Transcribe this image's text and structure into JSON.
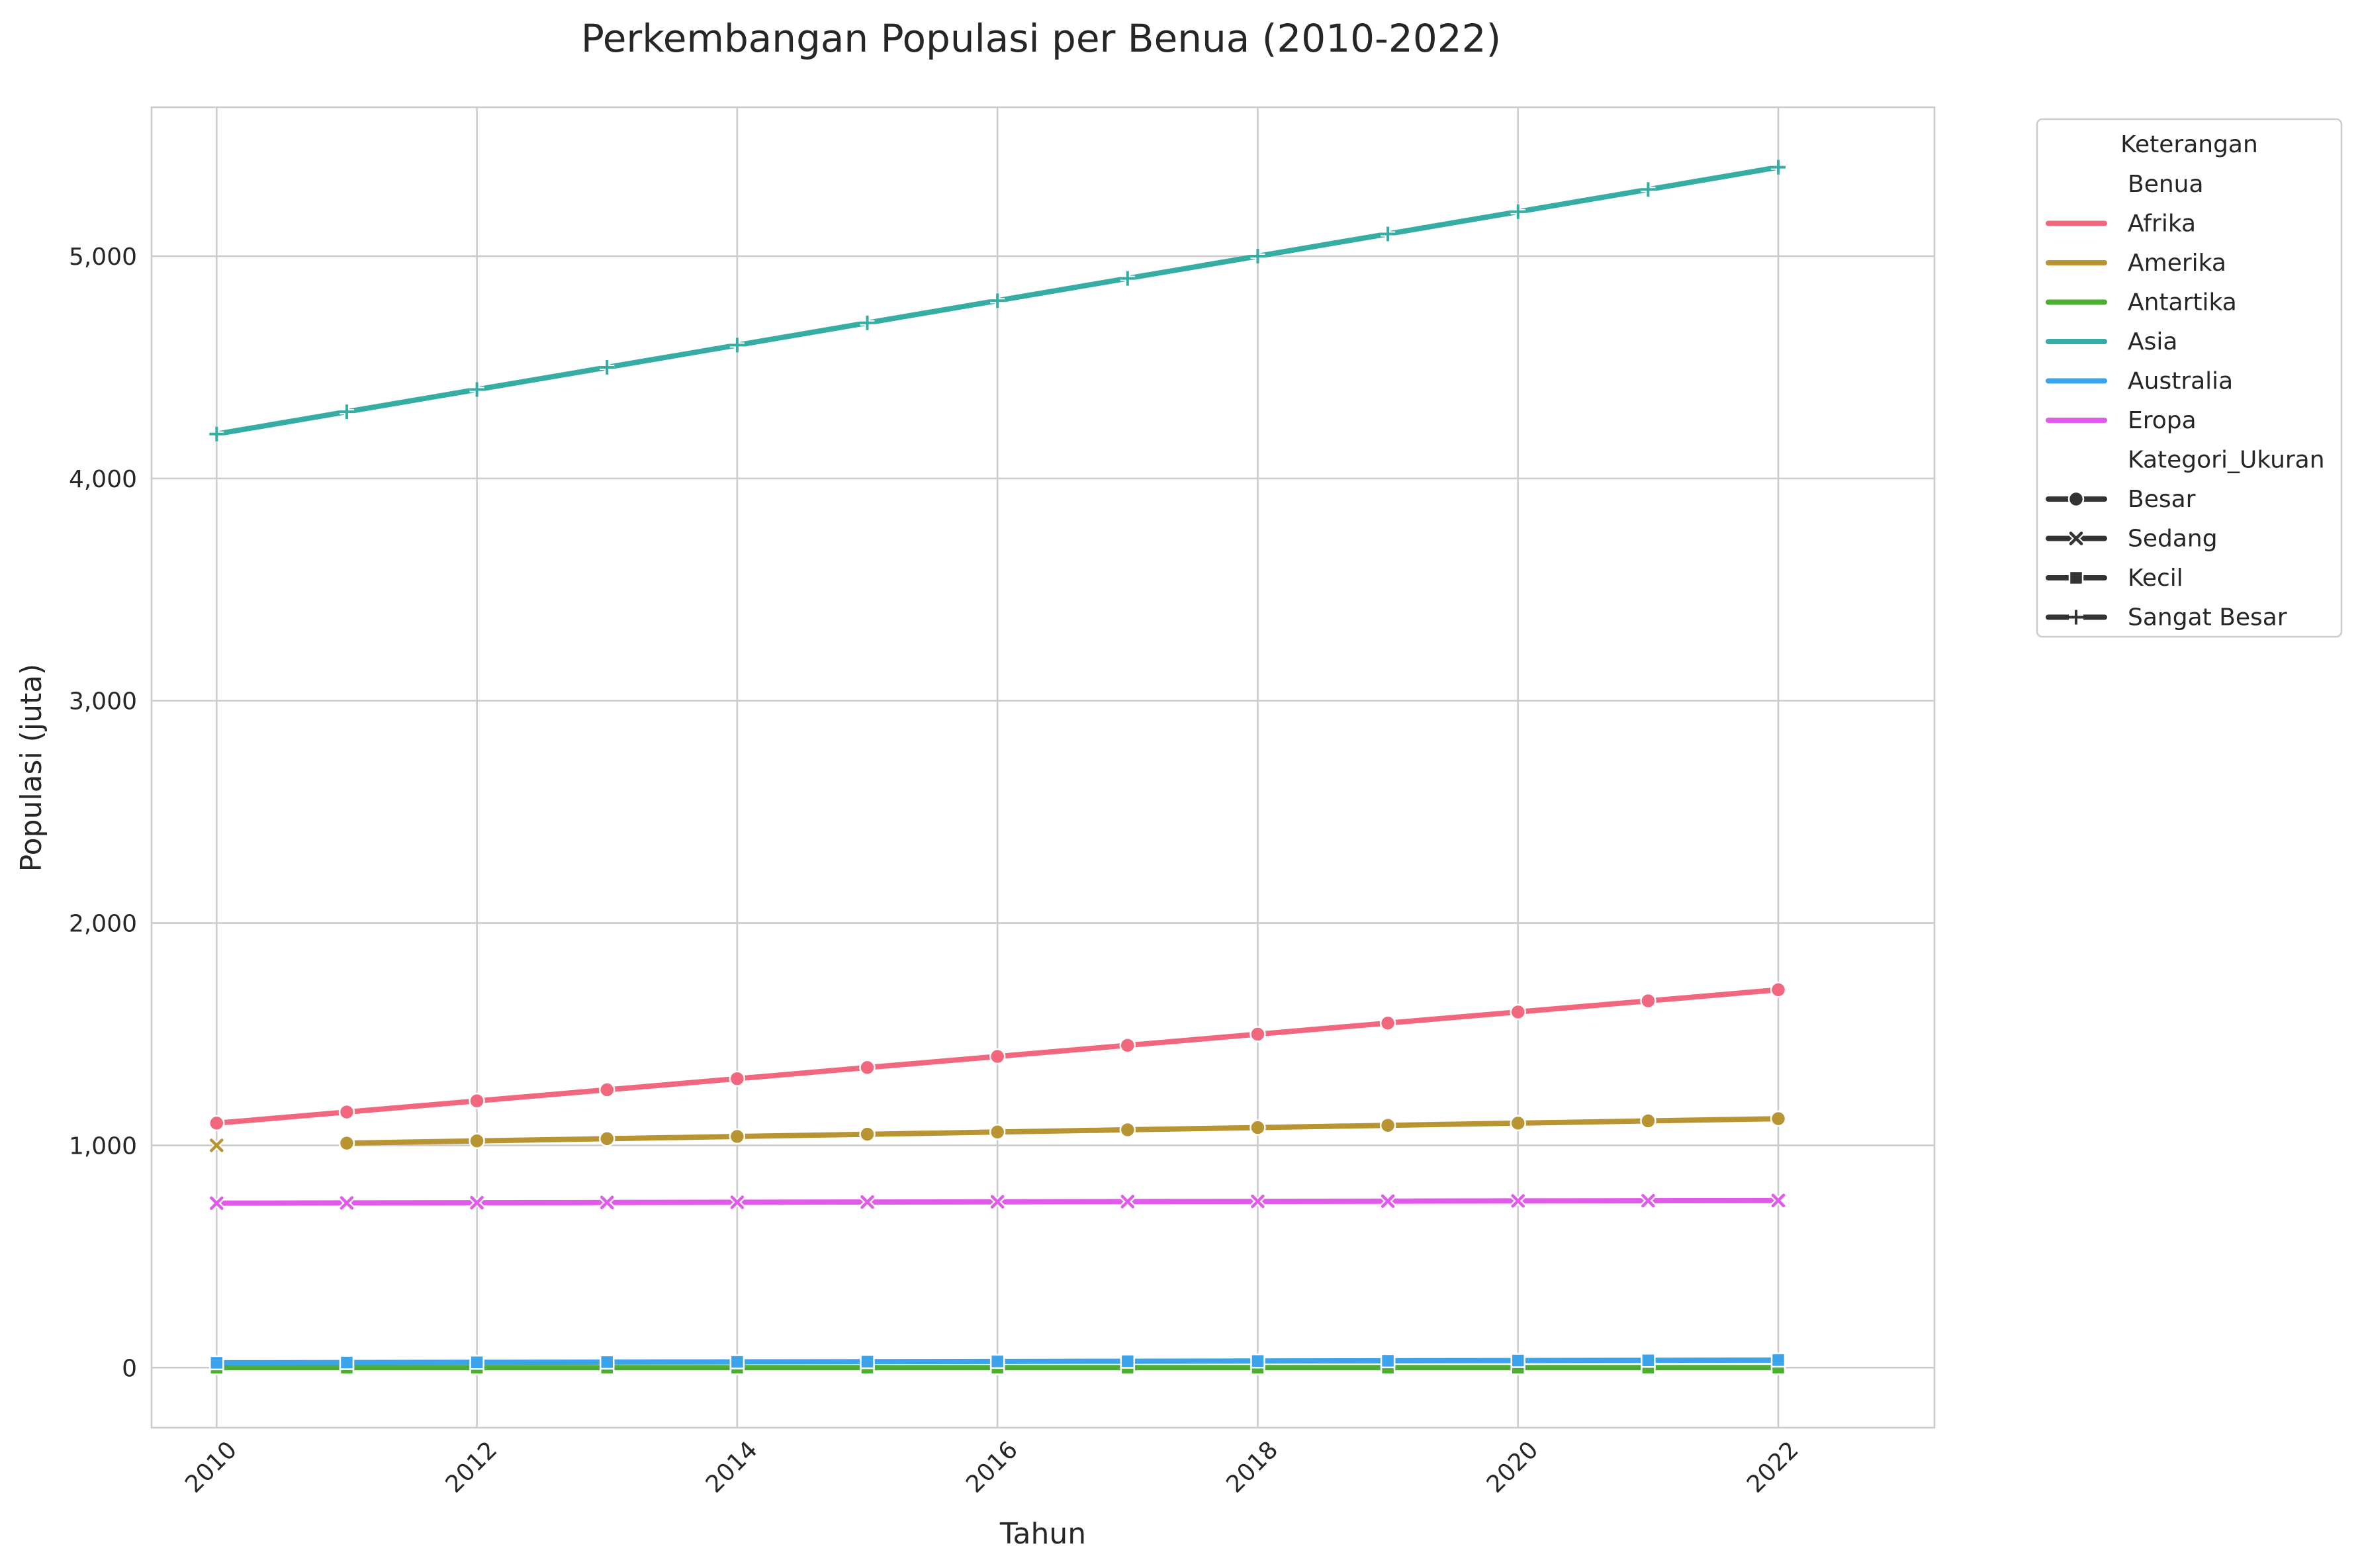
{
  "chart_data": {
    "type": "line",
    "title": "Perkembangan Populasi per Benua (2010-2022)",
    "xlabel": "Tahun",
    "ylabel": "Populasi (juta)",
    "xlim": [
      2009.5,
      2023.2
    ],
    "ylim": [
      -270,
      5670
    ],
    "xticks": [
      2010,
      2012,
      2014,
      2016,
      2018,
      2020,
      2022
    ],
    "xtick_labels": [
      "2010",
      "2012",
      "2014",
      "2016",
      "2018",
      "2020",
      "2022"
    ],
    "yticks": [
      0,
      1000,
      2000,
      3000,
      4000,
      5000
    ],
    "ytick_labels": [
      "0",
      "1,000",
      "2,000",
      "3,000",
      "4,000",
      "5,000"
    ],
    "grid": true,
    "legend_position": "outside-right",
    "x": [
      2010,
      2011,
      2012,
      2013,
      2014,
      2015,
      2016,
      2017,
      2018,
      2019,
      2020,
      2021,
      2022
    ],
    "series": [
      {
        "name": "Afrika",
        "color": "#f0677e",
        "category": "Besar",
        "values": [
          1100,
          1150,
          1200,
          1250,
          1300,
          1350,
          1400,
          1450,
          1500,
          1550,
          1600,
          1650,
          1700
        ],
        "markers": [
          "circle",
          "circle",
          "circle",
          "circle",
          "circle",
          "circle",
          "circle",
          "circle",
          "circle",
          "circle",
          "circle",
          "circle",
          "circle"
        ]
      },
      {
        "name": "Amerika",
        "color": "#b89433",
        "category": "Besar",
        "values": [
          1000,
          1010,
          1020,
          1030,
          1040,
          1050,
          1060,
          1070,
          1080,
          1090,
          1100,
          1110,
          1120
        ],
        "markers": [
          "x",
          "circle",
          "circle",
          "circle",
          "circle",
          "circle",
          "circle",
          "circle",
          "circle",
          "circle",
          "circle",
          "circle",
          "circle"
        ],
        "line_from_index": 1
      },
      {
        "name": "Antartika",
        "color": "#4daf31",
        "category": "Kecil",
        "values": [
          0,
          0,
          0,
          0,
          0,
          0,
          0,
          0,
          0,
          0,
          0,
          0,
          0
        ],
        "markers": [
          "square",
          "square",
          "square",
          "square",
          "square",
          "square",
          "square",
          "square",
          "square",
          "square",
          "square",
          "square",
          "square"
        ]
      },
      {
        "name": "Asia",
        "color": "#36ada4",
        "category": "Sangat Besar",
        "values": [
          4200,
          4300,
          4400,
          4500,
          4600,
          4700,
          4800,
          4900,
          5000,
          5100,
          5200,
          5300,
          5400
        ],
        "markers": [
          "plus",
          "plus",
          "plus",
          "plus",
          "plus",
          "plus",
          "plus",
          "plus",
          "plus",
          "plus",
          "plus",
          "plus",
          "plus"
        ]
      },
      {
        "name": "Australia",
        "color": "#3ba3ec",
        "category": "Kecil",
        "values": [
          22,
          23,
          24,
          25,
          26,
          27,
          28,
          29,
          30,
          31,
          32,
          33,
          34
        ],
        "markers": [
          "square",
          "square",
          "square",
          "square",
          "square",
          "square",
          "square",
          "square",
          "square",
          "square",
          "square",
          "square",
          "square"
        ]
      },
      {
        "name": "Eropa",
        "color": "#e15bea",
        "category": "Sedang",
        "values": [
          740,
          741,
          742,
          743,
          744,
          745,
          746,
          747,
          748,
          749,
          750,
          751,
          752
        ],
        "markers": [
          "x",
          "x",
          "x",
          "x",
          "x",
          "x",
          "x",
          "x",
          "x",
          "x",
          "x",
          "x",
          "x"
        ]
      }
    ],
    "legend": {
      "title": "Keterangan",
      "hue_title": "Benua",
      "style_title": "Kategori_Ukuran",
      "styles": [
        {
          "label": "Besar",
          "marker": "circle"
        },
        {
          "label": "Sedang",
          "marker": "x"
        },
        {
          "label": "Kecil",
          "marker": "square"
        },
        {
          "label": "Sangat Besar",
          "marker": "plus"
        }
      ]
    }
  }
}
